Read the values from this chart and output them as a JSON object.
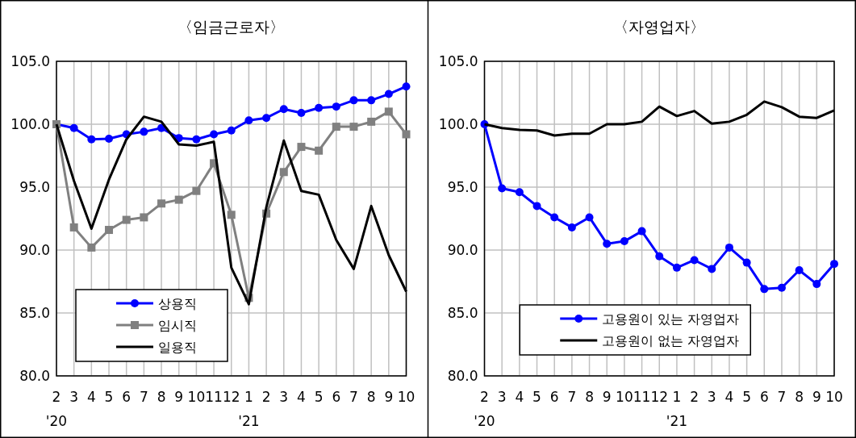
{
  "chart_data": [
    {
      "type": "line",
      "title": "〈임금근로자〉",
      "categories": [
        "2\n'20",
        "3",
        "4",
        "5",
        "6",
        "7",
        "8",
        "9",
        "10",
        "11",
        "12",
        "1\n'21",
        "2",
        "3",
        "4",
        "5",
        "6",
        "7",
        "8",
        "9",
        "10"
      ],
      "series": [
        {
          "name": "상용직",
          "color": "#0000ff",
          "marker": "circle",
          "values": [
            100,
            99.7,
            98.8,
            98.85,
            99.2,
            99.4,
            99.7,
            98.9,
            98.8,
            99.2,
            99.5,
            100.3,
            100.5,
            101.2,
            100.9,
            101.3,
            101.4,
            101.9,
            101.9,
            102.4,
            103.0
          ]
        },
        {
          "name": "임시직",
          "color": "#808080",
          "marker": "square",
          "values": [
            100,
            91.8,
            90.2,
            91.6,
            92.4,
            92.6,
            93.7,
            94.0,
            94.7,
            96.9,
            92.8,
            86.2,
            92.9,
            96.2,
            98.2,
            97.9,
            99.8,
            99.8,
            100.2,
            101.0,
            99.2
          ]
        },
        {
          "name": "일용직",
          "color": "#000000",
          "marker": "none",
          "values": [
            100,
            95.5,
            91.7,
            95.6,
            98.8,
            100.6,
            100.2,
            98.4,
            98.3,
            98.6,
            88.6,
            85.7,
            93.4,
            98.7,
            94.7,
            94.4,
            90.8,
            88.5,
            93.5,
            89.6,
            86.7
          ]
        }
      ],
      "ylim": [
        80,
        105
      ],
      "yticks": [
        {
          "value": 80,
          "label": "80.0"
        },
        {
          "value": 85,
          "label": "85.0"
        },
        {
          "value": 90,
          "label": "90.0"
        },
        {
          "value": 95,
          "label": "95.0"
        },
        {
          "value": 100,
          "label": "100.0"
        },
        {
          "value": 105,
          "label": "105.0"
        }
      ],
      "grid": true,
      "legend": "bottom left",
      "line_style": "solid"
    },
    {
      "type": "line",
      "title": "〈자영업자〉",
      "categories": [
        "2\n'20",
        "3",
        "4",
        "5",
        "6",
        "7",
        "8",
        "9",
        "10",
        "11",
        "12",
        "1\n'21",
        "2",
        "3",
        "4",
        "5",
        "6",
        "7",
        "8",
        "9",
        "10"
      ],
      "series": [
        {
          "name": "고용원이 있는 자영업자",
          "color": "#0000ff",
          "marker": "circle",
          "values": [
            100,
            94.9,
            94.6,
            93.5,
            92.6,
            91.8,
            92.6,
            90.5,
            90.7,
            91.5,
            89.5,
            88.6,
            89.2,
            88.5,
            90.2,
            89.0,
            86.9,
            87.0,
            88.4,
            87.3,
            88.9
          ]
        },
        {
          "name": "고용원이 없는 자영업자",
          "color": "#000000",
          "marker": "none",
          "values": [
            100,
            99.7,
            99.55,
            99.5,
            99.1,
            99.25,
            99.25,
            100.0,
            100.0,
            100.2,
            101.4,
            100.65,
            101.05,
            100.05,
            100.2,
            100.75,
            101.8,
            101.35,
            100.6,
            100.5,
            101.1
          ]
        }
      ],
      "ylim": [
        80,
        105
      ],
      "yticks": [
        {
          "value": 80,
          "label": "80.0"
        },
        {
          "value": 85,
          "label": "85.0"
        },
        {
          "value": 90,
          "label": "90.0"
        },
        {
          "value": 95,
          "label": "95.0"
        },
        {
          "value": 100,
          "label": "100.0"
        },
        {
          "value": 105,
          "label": "105.0"
        }
      ],
      "grid": true,
      "legend": "bottom",
      "line_style": "solid"
    }
  ]
}
